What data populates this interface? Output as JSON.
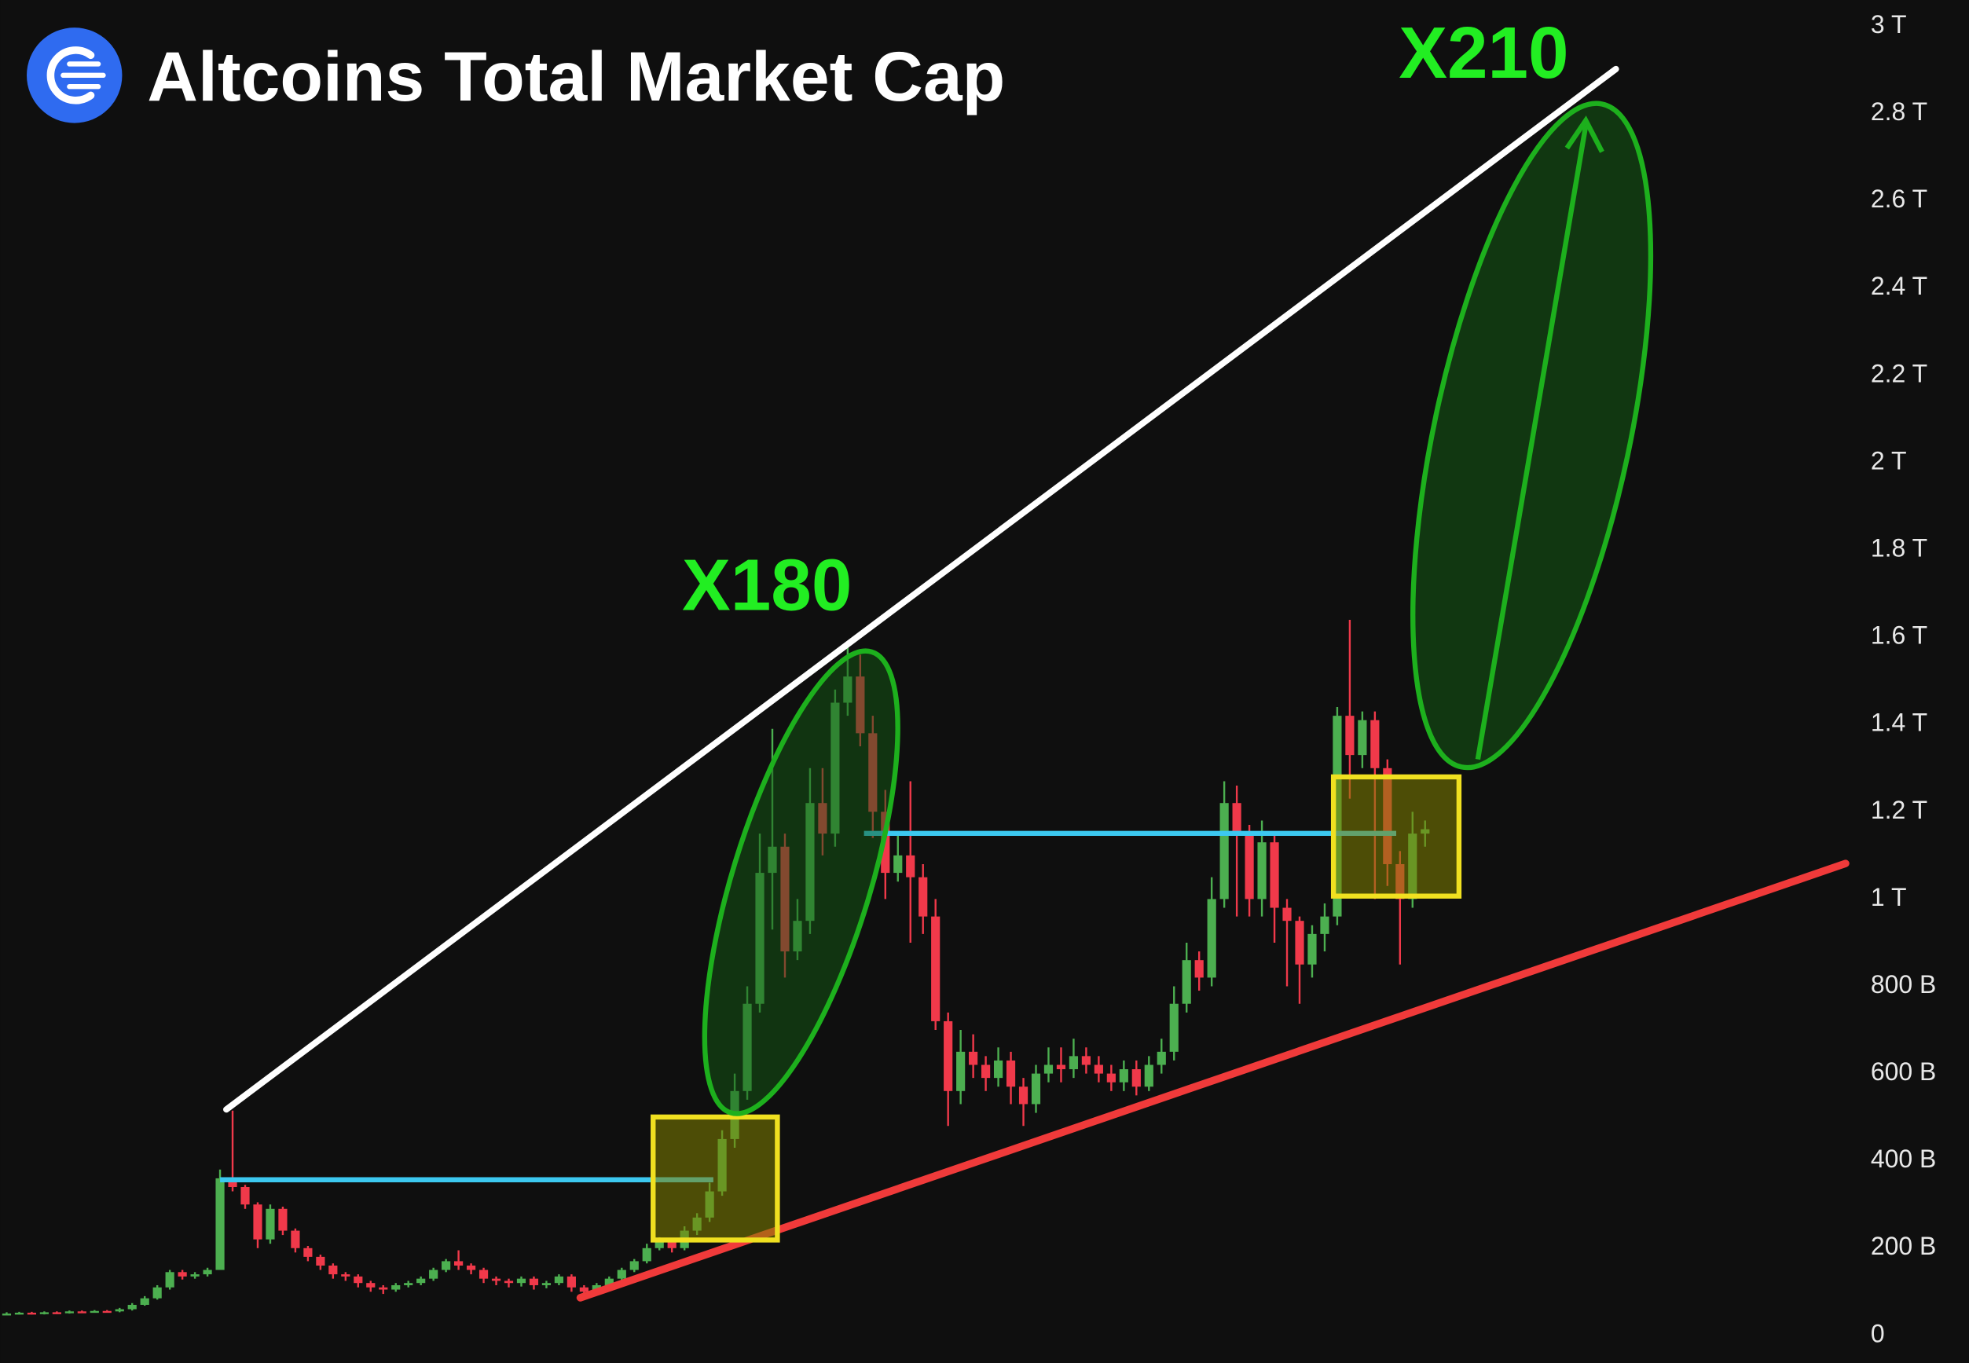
{
  "chart_data": {
    "type": "candlestick",
    "title": "Altcoins Total Market Cap",
    "annotations": [
      "X180",
      "X210"
    ],
    "up_color": "#4caf50",
    "down_color": "#f0394a",
    "ylim": [
      0,
      3000
    ],
    "yticks": [
      0,
      {
        "value": 200,
        "label": "200 B"
      },
      {
        "value": 400,
        "label": "400 B"
      },
      {
        "value": 600,
        "label": "600 B"
      },
      {
        "value": 800,
        "label": "800 B"
      },
      {
        "value": 1000,
        "label": "1 T"
      },
      {
        "value": 1200,
        "label": "1.2 T"
      },
      {
        "value": 1400,
        "label": "1.4 T"
      },
      {
        "value": 1600,
        "label": "1.6 T"
      },
      {
        "value": 1800,
        "label": "1.8 T"
      },
      {
        "value": 2000,
        "label": "2 T"
      },
      {
        "value": 2200,
        "label": "2.2 T"
      },
      {
        "value": 2400,
        "label": "2.4 T"
      },
      {
        "value": 2600,
        "label": "2.6 T"
      },
      {
        "value": 2800,
        "label": "2.8 T"
      },
      {
        "value": 3000,
        "label": "3 T"
      }
    ],
    "open": [
      50,
      50,
      52,
      50,
      53,
      52,
      55,
      54,
      56,
      55,
      60,
      70,
      85,
      110,
      145,
      135,
      140,
      150,
      360,
      340,
      300,
      220,
      290,
      240,
      200,
      180,
      160,
      140,
      135,
      120,
      110,
      105,
      115,
      120,
      130,
      150,
      170,
      160,
      150,
      130,
      125,
      120,
      130,
      115,
      120,
      135,
      110,
      100,
      115,
      130,
      150,
      170,
      200,
      215,
      200,
      240,
      270,
      330,
      450,
      560,
      760,
      1060,
      1120,
      880,
      950,
      1220,
      1150,
      1450,
      1510,
      1380,
      1200,
      1060,
      1100,
      1050,
      960,
      720,
      560,
      650,
      620,
      590,
      630,
      570,
      530,
      600,
      620,
      610,
      640,
      620,
      600,
      580,
      610,
      570,
      620,
      650,
      760,
      860,
      820,
      1000,
      1220,
      1150,
      1000,
      1130,
      980,
      950,
      850,
      920,
      960,
      1420,
      1330,
      1410,
      1300,
      1080,
      1000,
      1150
    ],
    "high": [
      53,
      54,
      54,
      55,
      55,
      57,
      57,
      58,
      58,
      63,
      74,
      90,
      115,
      150,
      150,
      145,
      155,
      380,
      515,
      345,
      305,
      300,
      295,
      245,
      205,
      185,
      165,
      145,
      140,
      125,
      115,
      120,
      125,
      135,
      155,
      175,
      195,
      165,
      155,
      135,
      130,
      135,
      135,
      125,
      140,
      140,
      115,
      120,
      135,
      155,
      175,
      210,
      225,
      220,
      250,
      280,
      350,
      470,
      600,
      800,
      1150,
      1390,
      1150,
      1000,
      1300,
      1300,
      1480,
      1580,
      1560,
      1420,
      1250,
      1150,
      1270,
      1080,
      1000,
      740,
      700,
      690,
      640,
      660,
      650,
      590,
      620,
      660,
      660,
      680,
      660,
      640,
      620,
      630,
      630,
      640,
      680,
      800,
      900,
      880,
      1050,
      1270,
      1260,
      1170,
      1180,
      1150,
      1000,
      960,
      940,
      990,
      1440,
      1640,
      1430,
      1430,
      1320,
      1110,
      1200,
      1180
    ],
    "low": [
      47,
      48,
      48,
      48,
      49,
      50,
      51,
      52,
      52,
      53,
      57,
      68,
      82,
      105,
      128,
      130,
      135,
      150,
      330,
      290,
      200,
      210,
      230,
      190,
      170,
      150,
      130,
      125,
      110,
      100,
      95,
      100,
      110,
      115,
      125,
      145,
      150,
      140,
      120,
      115,
      110,
      112,
      105,
      108,
      115,
      100,
      90,
      95,
      110,
      125,
      145,
      165,
      195,
      190,
      195,
      230,
      260,
      320,
      430,
      540,
      740,
      930,
      820,
      860,
      920,
      1100,
      1120,
      1420,
      1350,
      1140,
      1000,
      1040,
      900,
      920,
      700,
      480,
      530,
      590,
      560,
      570,
      530,
      480,
      510,
      580,
      580,
      590,
      600,
      580,
      560,
      560,
      550,
      560,
      600,
      630,
      740,
      790,
      800,
      980,
      960,
      960,
      960,
      900,
      800,
      760,
      820,
      880,
      940,
      1230,
      1300,
      1000,
      1030,
      850,
      980,
      1120
    ],
    "close": [
      50,
      52,
      50,
      53,
      52,
      55,
      54,
      56,
      55,
      60,
      70,
      85,
      110,
      145,
      135,
      140,
      150,
      360,
      340,
      300,
      220,
      290,
      240,
      200,
      180,
      160,
      140,
      135,
      120,
      110,
      105,
      115,
      120,
      130,
      150,
      170,
      160,
      150,
      130,
      125,
      120,
      130,
      115,
      120,
      135,
      110,
      100,
      115,
      130,
      150,
      170,
      200,
      215,
      200,
      240,
      270,
      330,
      450,
      560,
      760,
      1060,
      1120,
      880,
      950,
      1220,
      1150,
      1450,
      1510,
      1380,
      1200,
      1060,
      1100,
      1050,
      960,
      720,
      560,
      650,
      620,
      590,
      630,
      570,
      530,
      600,
      620,
      610,
      640,
      620,
      600,
      580,
      610,
      570,
      620,
      650,
      760,
      860,
      820,
      1000,
      1220,
      1150,
      1000,
      1130,
      980,
      950,
      850,
      920,
      960,
      1420,
      1330,
      1410,
      1300,
      1080,
      1000,
      1150,
      1160
    ]
  }
}
